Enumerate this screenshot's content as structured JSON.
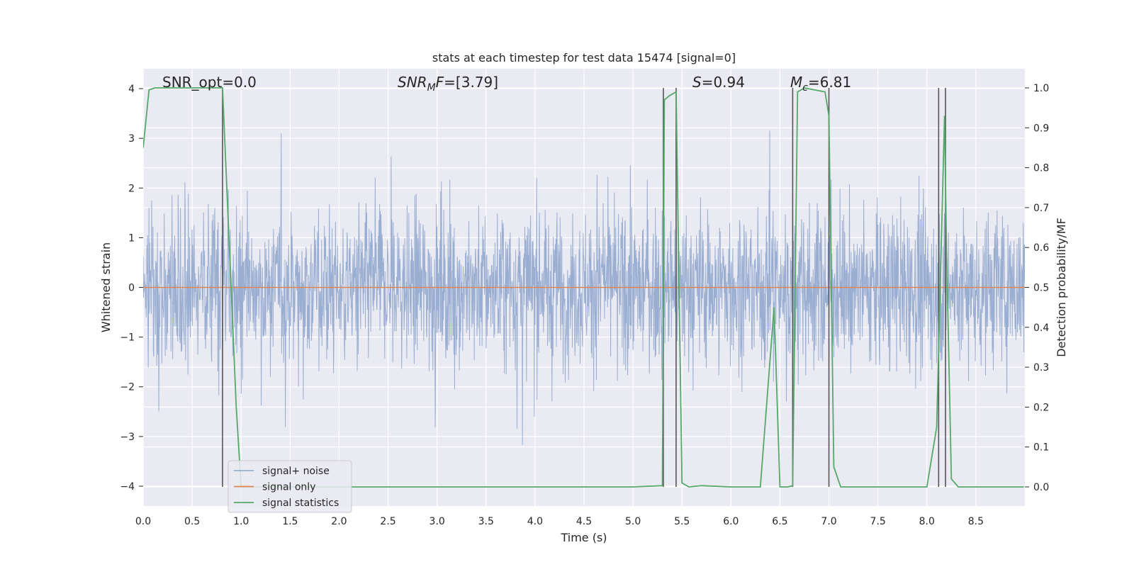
{
  "chart_data": {
    "type": "line",
    "title": "stats at each timestep for test data 15474 [signal=0]",
    "xlabel": "Time (s)",
    "ylabel": "Whitened strain",
    "y2label": "Detection probability/MF",
    "xlim": [
      0,
      9
    ],
    "ylim": [
      -4.4,
      4.4
    ],
    "y2lim": [
      -0.048,
      1.048
    ],
    "xticks": [
      "0.0",
      "0.5",
      "1.0",
      "1.5",
      "2.0",
      "2.5",
      "3.0",
      "3.5",
      "4.0",
      "4.5",
      "5.0",
      "5.5",
      "6.0",
      "6.5",
      "7.0",
      "7.5",
      "8.0",
      "8.5"
    ],
    "yticks": [
      "4",
      "3",
      "2",
      "1",
      "0",
      "−1",
      "−2",
      "−3",
      "−4"
    ],
    "y2ticks": [
      "1.0",
      "0.9",
      "0.8",
      "0.7",
      "0.6",
      "0.5",
      "0.4",
      "0.3",
      "0.2",
      "0.1",
      "0.0"
    ],
    "grid": true,
    "legend_position": "lower-left",
    "series": [
      {
        "name": "signal+ noise",
        "color": "#9aaed2",
        "kind": "noisy strain (dense, amplitude ~1.6, peaks to ~3.6 / -3.9)"
      },
      {
        "name": "signal only",
        "color": "#dd8452",
        "values_constant": 0
      },
      {
        "name": "signal statistics",
        "color": "#55a868",
        "x": [
          0.0,
          0.06,
          0.12,
          0.3,
          0.6,
          0.81,
          0.95,
          1.0,
          1.1,
          2.0,
          3.0,
          4.0,
          5.0,
          5.3,
          5.32,
          5.37,
          5.44,
          5.5,
          5.57,
          5.7,
          6.0,
          6.3,
          6.44,
          6.5,
          6.58,
          6.63,
          6.68,
          6.75,
          6.96,
          7.0,
          7.05,
          7.12,
          7.5,
          8.0,
          8.1,
          8.18,
          8.2,
          8.25,
          8.32,
          8.5,
          8.99
        ],
        "y": [
          0.85,
          0.995,
          1.0,
          1.0,
          1.0,
          1.0,
          0.2,
          0.0,
          0.0,
          0.0,
          0.0,
          0.0,
          0.0,
          0.003,
          0.97,
          0.98,
          0.99,
          0.01,
          0.0,
          0.003,
          0.0,
          0.0,
          0.45,
          0.0,
          0.0,
          0.003,
          0.99,
          1.0,
          0.99,
          0.93,
          0.05,
          0.0,
          0.0,
          0.0,
          0.15,
          0.93,
          0.6,
          0.02,
          0.0,
          0.0,
          0.0
        ]
      }
    ],
    "vertical_lines_x": [
      0.81,
      5.31,
      5.44,
      6.63,
      7.0,
      8.12,
      8.19
    ],
    "annotations": [
      {
        "parts": [
          {
            "text": "SNR_opt=0.0"
          }
        ]
      },
      {
        "parts": [
          {
            "text": "SNR",
            "italic": true
          },
          {
            "text": "M",
            "italic": true,
            "sub": true
          },
          {
            "text": "F",
            "italic": true
          },
          {
            "text": "=[3.79]"
          }
        ]
      },
      {
        "parts": [
          {
            "text": "S",
            "italic": true
          },
          {
            "text": "=0.94"
          }
        ]
      },
      {
        "parts": [
          {
            "text": "M",
            "italic": true
          },
          {
            "text": "c",
            "italic": true,
            "sub": true
          },
          {
            "text": "=6.81"
          }
        ]
      }
    ]
  }
}
